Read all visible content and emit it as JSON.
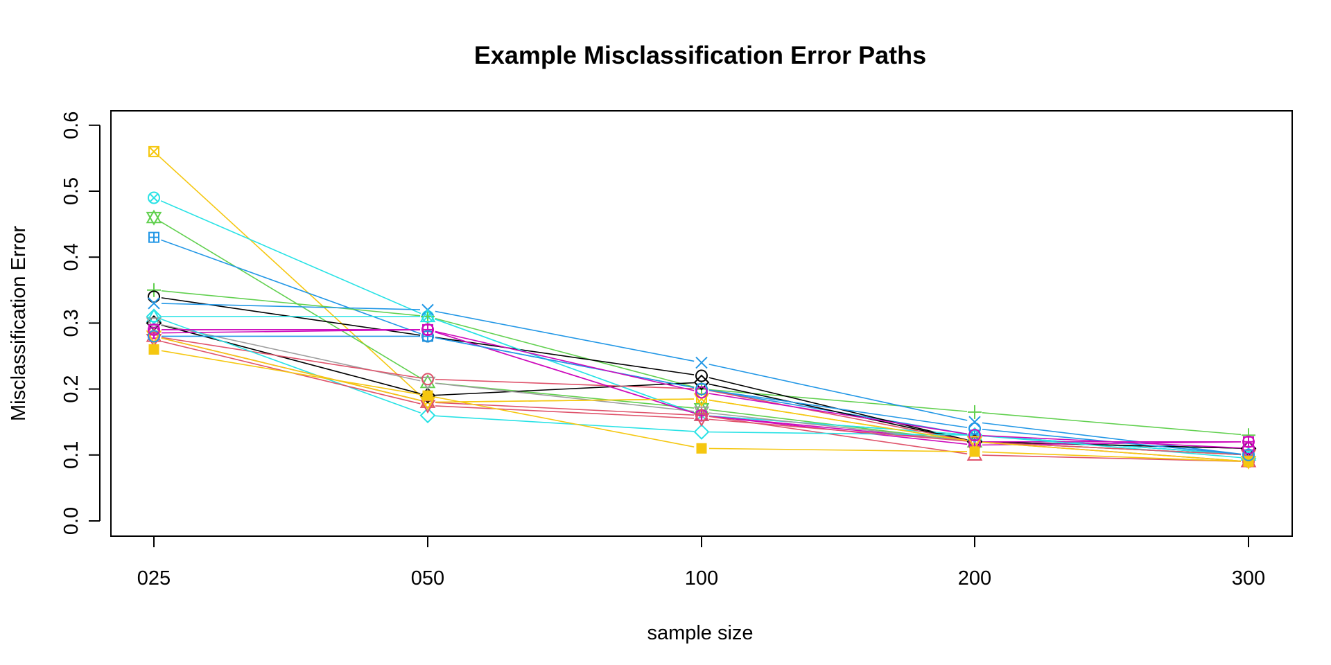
{
  "chart_data": {
    "type": "line",
    "title": "Example Misclassification Error Paths",
    "xlabel": "sample size",
    "ylabel": "Misclassification Error",
    "categories": [
      "025",
      "050",
      "100",
      "200",
      "300"
    ],
    "y_ticks": [
      "0.0",
      "0.1",
      "0.2",
      "0.3",
      "0.4",
      "0.5",
      "0.6"
    ],
    "ylim": [
      0,
      0.62
    ],
    "grid": false,
    "legend": "none",
    "series": [
      {
        "color": "#F5C710",
        "marker": "square-x",
        "values": [
          0.56,
          0.18,
          0.185,
          0.12,
          0.1
        ]
      },
      {
        "color": "#28E2E5",
        "marker": "circle-x",
        "values": [
          0.49,
          0.31,
          0.16,
          0.13,
          0.1
        ]
      },
      {
        "color": "#61D04F",
        "marker": "star-of-david",
        "values": [
          0.46,
          0.21,
          0.17,
          0.12,
          0.1
        ]
      },
      {
        "color": "#2297E6",
        "marker": "square-plus",
        "values": [
          0.43,
          0.28,
          0.2,
          0.13,
          0.1
        ]
      },
      {
        "color": "#61D04F",
        "marker": "plus",
        "values": [
          0.35,
          0.31,
          0.2,
          0.165,
          0.13
        ]
      },
      {
        "color": "#000000",
        "marker": "circle",
        "values": [
          0.34,
          0.28,
          0.22,
          0.12,
          0.11
        ]
      },
      {
        "color": "#2297E6",
        "marker": "x",
        "values": [
          0.33,
          0.32,
          0.24,
          0.15,
          0.1
        ]
      },
      {
        "color": "#28E2E5",
        "marker": "triangle",
        "values": [
          0.31,
          0.31,
          0.16,
          0.13,
          0.1
        ]
      },
      {
        "color": "#000000",
        "marker": "diamond",
        "values": [
          0.3,
          0.19,
          0.21,
          0.12,
          0.11
        ]
      },
      {
        "color": "#CD0BBC",
        "marker": "square",
        "values": [
          0.29,
          0.29,
          0.16,
          0.12,
          0.12
        ]
      },
      {
        "color": "#9E9E9E",
        "marker": "triangle-down",
        "values": [
          0.3,
          0.21,
          0.165,
          0.12,
          0.1
        ]
      },
      {
        "color": "#DF536B",
        "marker": "circle",
        "values": [
          0.28,
          0.215,
          0.2,
          0.12,
          0.09
        ]
      },
      {
        "color": "#CD0BBC",
        "marker": "circle-plus",
        "values": [
          0.285,
          0.29,
          0.16,
          0.115,
          0.12
        ]
      },
      {
        "color": "#DF536B",
        "marker": "triangle",
        "values": [
          0.28,
          0.18,
          0.16,
          0.1,
          0.09
        ]
      },
      {
        "color": "#28E2E5",
        "marker": "diamond",
        "values": [
          0.31,
          0.16,
          0.135,
          0.13,
          0.095
        ]
      },
      {
        "color": "#DF536B",
        "marker": "triangle-down",
        "values": [
          0.275,
          0.175,
          0.155,
          0.12,
          0.1
        ]
      },
      {
        "color": "#F5C710",
        "marker": "triangle-down",
        "values": [
          0.28,
          0.18,
          0.185,
          0.12,
          0.09
        ]
      },
      {
        "color": "#F5C710",
        "marker": "square-filled",
        "values": [
          0.26,
          0.19,
          0.11,
          0.105,
          0.09
        ]
      },
      {
        "color": "#2297E6",
        "marker": "circle",
        "values": [
          0.28,
          0.28,
          0.2,
          0.14,
          0.1
        ]
      },
      {
        "color": "#CD0BBC",
        "marker": "circle",
        "values": [
          0.29,
          0.29,
          0.195,
          0.13,
          0.11
        ]
      }
    ]
  }
}
